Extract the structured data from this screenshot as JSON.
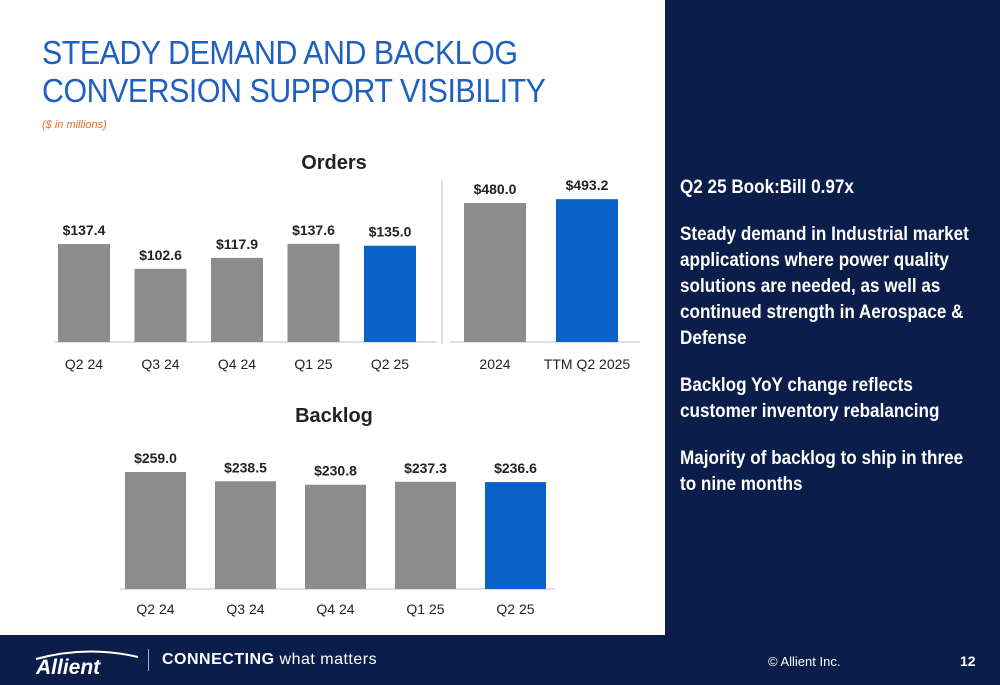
{
  "slide": {
    "title": "STEADY DEMAND AND BACKLOG CONVERSION SUPPORT VISIBILITY",
    "subtitle": "($ in millions)"
  },
  "bullets": [
    "Q2 25 Book:Bill 0.97x",
    "Steady demand in Industrial market applications where power quality solutions are needed, as well as continued strength in Aerospace & Defense",
    "Backlog YoY change reflects customer inventory rebalancing",
    "Majority of backlog to ship in three to nine months"
  ],
  "footer": {
    "logo_text": "Allient",
    "tagline_bold": "CONNECTING",
    "tagline_rest": " what matters",
    "copyright": "© Allient Inc.",
    "page_number": "12"
  },
  "colors": {
    "bar_gray": "#8c8c8c",
    "bar_highlight": "#0a62c9",
    "title_blue": "#1e5fbf",
    "navy": "#0b1d4a"
  },
  "chart_data": [
    {
      "type": "bar",
      "title": "Orders",
      "categories": [
        "Q2 24",
        "Q3 24",
        "Q4 24",
        "Q1 25",
        "Q2 25"
      ],
      "values": [
        137.4,
        102.6,
        117.9,
        137.6,
        135.0
      ],
      "labels": [
        "$137.4",
        "$102.6",
        "$117.9",
        "$137.6",
        "$135.0"
      ],
      "highlight_index": 4
    },
    {
      "type": "bar",
      "title": "",
      "categories": [
        "2024",
        "TTM Q2 2025"
      ],
      "values": [
        480.0,
        493.2
      ],
      "labels": [
        "$480.0",
        "$493.2"
      ],
      "highlight_index": 1
    },
    {
      "type": "bar",
      "title": "Backlog",
      "categories": [
        "Q2 24",
        "Q3 24",
        "Q4 24",
        "Q1 25",
        "Q2 25"
      ],
      "values": [
        259.0,
        238.5,
        230.8,
        237.3,
        236.6
      ],
      "labels": [
        "$259.0",
        "$238.5",
        "$230.8",
        "$237.3",
        "$236.6"
      ],
      "highlight_index": 4
    }
  ]
}
